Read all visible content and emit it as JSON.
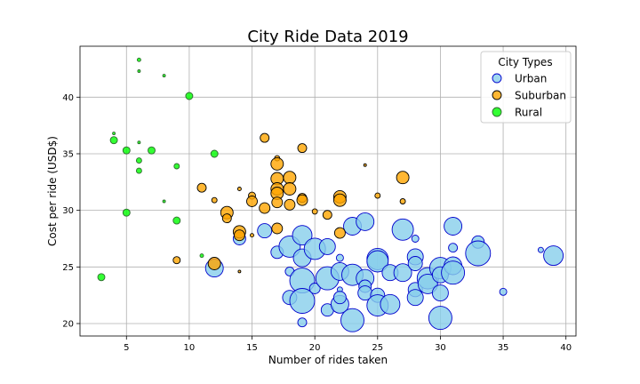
{
  "chart_data": {
    "type": "scatter",
    "title": "City Ride Data 2019",
    "xlabel": "Number of rides taken",
    "ylabel": "Cost per ride (USD$)",
    "xlim": [
      1.3,
      40.8
    ],
    "ylim": [
      18.9,
      44.5
    ],
    "xticks": [
      5,
      10,
      15,
      20,
      25,
      30,
      35,
      40
    ],
    "yticks": [
      20,
      25,
      30,
      35,
      40
    ],
    "grid": true,
    "legend": {
      "title": "City Types",
      "placement": "top-right"
    },
    "size_unit_note": "r = marker radius in px (proportional to driver count)",
    "series": [
      {
        "name": "Urban",
        "fill": "#87CEEB",
        "edge": "#0000CD",
        "points": [
          {
            "x": 12,
            "y": 24.9,
            "r": 10
          },
          {
            "x": 14,
            "y": 27.5,
            "r": 7
          },
          {
            "x": 16,
            "y": 28.2,
            "r": 8
          },
          {
            "x": 17,
            "y": 26.3,
            "r": 7
          },
          {
            "x": 18,
            "y": 26.8,
            "r": 12
          },
          {
            "x": 18,
            "y": 24.6,
            "r": 5
          },
          {
            "x": 18,
            "y": 22.3,
            "r": 8
          },
          {
            "x": 19,
            "y": 27.8,
            "r": 11
          },
          {
            "x": 19,
            "y": 23.8,
            "r": 14
          },
          {
            "x": 19,
            "y": 22.0,
            "r": 14
          },
          {
            "x": 19,
            "y": 20.1,
            "r": 5
          },
          {
            "x": 19,
            "y": 25.8,
            "r": 10
          },
          {
            "x": 20,
            "y": 26.6,
            "r": 12
          },
          {
            "x": 20,
            "y": 23.1,
            "r": 6
          },
          {
            "x": 21,
            "y": 26.8,
            "r": 9
          },
          {
            "x": 21,
            "y": 24.0,
            "r": 13
          },
          {
            "x": 21,
            "y": 21.2,
            "r": 7
          },
          {
            "x": 22,
            "y": 25.8,
            "r": 4
          },
          {
            "x": 22,
            "y": 24.6,
            "r": 10
          },
          {
            "x": 22,
            "y": 23.0,
            "r": 3
          },
          {
            "x": 22,
            "y": 21.7,
            "r": 10
          },
          {
            "x": 22,
            "y": 22.3,
            "r": 7
          },
          {
            "x": 23,
            "y": 28.6,
            "r": 10
          },
          {
            "x": 23,
            "y": 24.3,
            "r": 12
          },
          {
            "x": 23,
            "y": 20.3,
            "r": 13
          },
          {
            "x": 24,
            "y": 29.0,
            "r": 10
          },
          {
            "x": 24,
            "y": 24.0,
            "r": 10
          },
          {
            "x": 24,
            "y": 23.3,
            "r": 7
          },
          {
            "x": 24,
            "y": 22.7,
            "r": 8
          },
          {
            "x": 25,
            "y": 25.7,
            "r": 12
          },
          {
            "x": 25,
            "y": 25.5,
            "r": 12
          },
          {
            "x": 25,
            "y": 22.5,
            "r": 8
          },
          {
            "x": 25,
            "y": 21.6,
            "r": 12
          },
          {
            "x": 26,
            "y": 24.5,
            "r": 9
          },
          {
            "x": 26,
            "y": 21.7,
            "r": 11
          },
          {
            "x": 27,
            "y": 28.3,
            "r": 12
          },
          {
            "x": 27,
            "y": 24.5,
            "r": 10
          },
          {
            "x": 28,
            "y": 27.5,
            "r": 4
          },
          {
            "x": 28,
            "y": 25.9,
            "r": 9
          },
          {
            "x": 28,
            "y": 25.3,
            "r": 8
          },
          {
            "x": 28,
            "y": 23.0,
            "r": 8
          },
          {
            "x": 28,
            "y": 22.3,
            "r": 9
          },
          {
            "x": 29,
            "y": 24.0,
            "r": 12
          },
          {
            "x": 29,
            "y": 23.5,
            "r": 11
          },
          {
            "x": 30,
            "y": 24.9,
            "r": 12
          },
          {
            "x": 30,
            "y": 24.3,
            "r": 9
          },
          {
            "x": 30,
            "y": 22.7,
            "r": 9
          },
          {
            "x": 30,
            "y": 20.5,
            "r": 13
          },
          {
            "x": 31,
            "y": 28.6,
            "r": 10
          },
          {
            "x": 31,
            "y": 26.7,
            "r": 5
          },
          {
            "x": 31,
            "y": 25.1,
            "r": 10
          },
          {
            "x": 31,
            "y": 24.5,
            "r": 13
          },
          {
            "x": 33,
            "y": 27.2,
            "r": 7
          },
          {
            "x": 33,
            "y": 26.2,
            "r": 14
          },
          {
            "x": 35,
            "y": 22.8,
            "r": 4
          },
          {
            "x": 38,
            "y": 26.5,
            "r": 3
          },
          {
            "x": 39,
            "y": 26.0,
            "r": 11
          }
        ]
      },
      {
        "name": "Suburban",
        "fill": "#FFA500",
        "edge": "#000000",
        "points": [
          {
            "x": 9,
            "y": 25.6,
            "r": 4
          },
          {
            "x": 11,
            "y": 32.0,
            "r": 5
          },
          {
            "x": 12,
            "y": 30.9,
            "r": 3
          },
          {
            "x": 12,
            "y": 25.3,
            "r": 7
          },
          {
            "x": 13,
            "y": 29.8,
            "r": 7
          },
          {
            "x": 13,
            "y": 29.3,
            "r": 5
          },
          {
            "x": 14,
            "y": 31.9,
            "r": 2
          },
          {
            "x": 14,
            "y": 28.1,
            "r": 7
          },
          {
            "x": 14,
            "y": 27.8,
            "r": 6
          },
          {
            "x": 14,
            "y": 24.6,
            "r": 1.5
          },
          {
            "x": 15,
            "y": 31.3,
            "r": 4
          },
          {
            "x": 15,
            "y": 30.8,
            "r": 6
          },
          {
            "x": 15,
            "y": 27.8,
            "r": 2
          },
          {
            "x": 16,
            "y": 36.4,
            "r": 5
          },
          {
            "x": 16,
            "y": 30.2,
            "r": 6
          },
          {
            "x": 17,
            "y": 34.6,
            "r": 3
          },
          {
            "x": 17,
            "y": 34.1,
            "r": 7
          },
          {
            "x": 17,
            "y": 32.8,
            "r": 7
          },
          {
            "x": 17,
            "y": 31.9,
            "r": 7
          },
          {
            "x": 17,
            "y": 31.5,
            "r": 7
          },
          {
            "x": 17,
            "y": 30.7,
            "r": 6
          },
          {
            "x": 17,
            "y": 28.4,
            "r": 6
          },
          {
            "x": 18,
            "y": 32.9,
            "r": 7
          },
          {
            "x": 18,
            "y": 31.9,
            "r": 7
          },
          {
            "x": 18,
            "y": 30.5,
            "r": 6
          },
          {
            "x": 19,
            "y": 35.5,
            "r": 5
          },
          {
            "x": 19,
            "y": 31.1,
            "r": 5
          },
          {
            "x": 19,
            "y": 30.9,
            "r": 6
          },
          {
            "x": 20,
            "y": 29.9,
            "r": 3
          },
          {
            "x": 21,
            "y": 29.6,
            "r": 5
          },
          {
            "x": 22,
            "y": 31.2,
            "r": 7
          },
          {
            "x": 22,
            "y": 30.9,
            "r": 7
          },
          {
            "x": 22,
            "y": 28.0,
            "r": 6
          },
          {
            "x": 24,
            "y": 34.0,
            "r": 1.5
          },
          {
            "x": 25,
            "y": 31.3,
            "r": 3
          },
          {
            "x": 27,
            "y": 32.9,
            "r": 7
          },
          {
            "x": 27,
            "y": 30.8,
            "r": 3
          }
        ]
      },
      {
        "name": "Rural",
        "fill": "#00FF00",
        "edge": "#2E6B2E",
        "points": [
          {
            "x": 3,
            "y": 24.1,
            "r": 4
          },
          {
            "x": 4,
            "y": 36.8,
            "r": 1.5
          },
          {
            "x": 4,
            "y": 36.2,
            "r": 4
          },
          {
            "x": 5,
            "y": 35.3,
            "r": 4
          },
          {
            "x": 5,
            "y": 29.8,
            "r": 4
          },
          {
            "x": 6,
            "y": 43.3,
            "r": 2
          },
          {
            "x": 6,
            "y": 42.3,
            "r": 1.5
          },
          {
            "x": 6,
            "y": 36.0,
            "r": 1.5
          },
          {
            "x": 6,
            "y": 34.4,
            "r": 3
          },
          {
            "x": 6,
            "y": 33.5,
            "r": 3
          },
          {
            "x": 7,
            "y": 35.3,
            "r": 4
          },
          {
            "x": 8,
            "y": 41.9,
            "r": 1.5
          },
          {
            "x": 8,
            "y": 30.8,
            "r": 1.5
          },
          {
            "x": 9,
            "y": 33.9,
            "r": 3
          },
          {
            "x": 9,
            "y": 29.1,
            "r": 4
          },
          {
            "x": 10,
            "y": 40.1,
            "r": 4
          },
          {
            "x": 11,
            "y": 26.0,
            "r": 2
          },
          {
            "x": 12,
            "y": 35.0,
            "r": 4
          }
        ]
      }
    ]
  }
}
